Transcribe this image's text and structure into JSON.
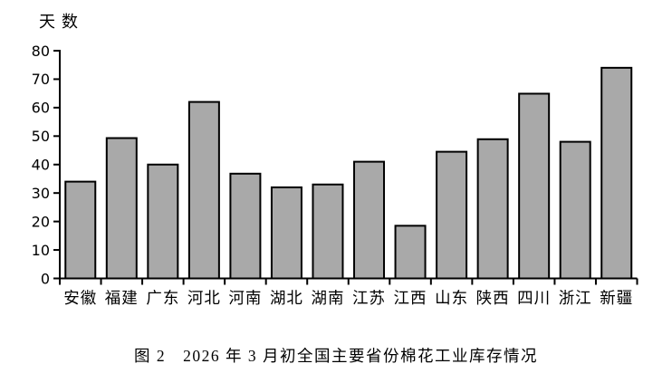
{
  "chart": {
    "background": "#ffffff",
    "axis_color": "#000000",
    "text_color": "#000000"
  },
  "chart_data": {
    "type": "bar",
    "title": "图 2　2026 年 3 月初全国主要省份棉花工业库存情况",
    "ylabel": "天数",
    "xlabel": "",
    "categories": [
      "安徽",
      "福建",
      "广东",
      "河北",
      "河南",
      "湖北",
      "湖南",
      "江苏",
      "江西",
      "山东",
      "陕西",
      "四川",
      "浙江",
      "新疆"
    ],
    "values": [
      34,
      49.3,
      40,
      62,
      36.8,
      32,
      33,
      41,
      18.5,
      44.5,
      48.9,
      64.9,
      48,
      74
    ],
    "ylim": [
      0,
      80
    ],
    "yticks": [
      0,
      10,
      20,
      30,
      40,
      50,
      60,
      70,
      80
    ],
    "grid": false,
    "legend": null,
    "bar_fill": "#a9a9a9",
    "bar_stroke": "#000000"
  }
}
